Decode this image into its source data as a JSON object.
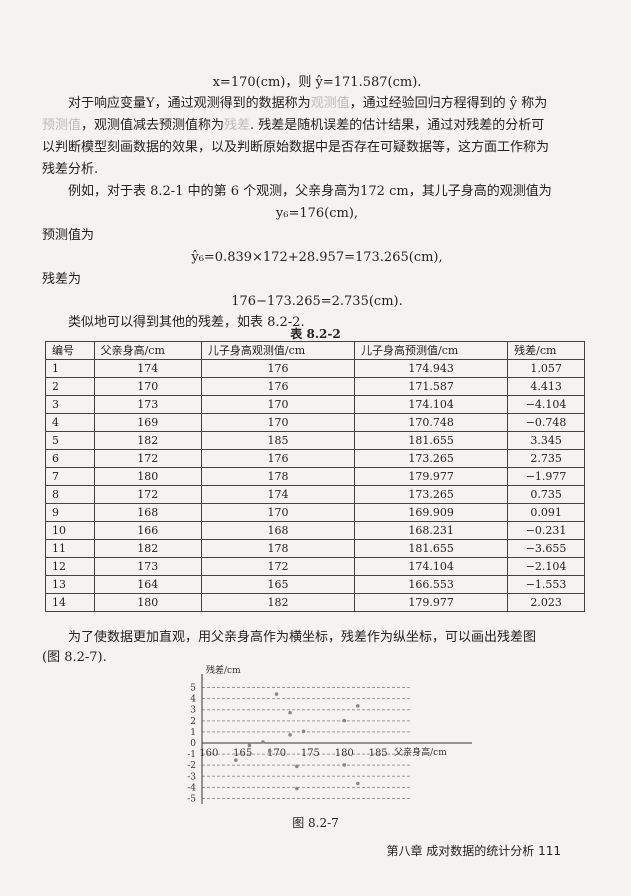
{
  "text": {
    "eq1": "x=170(cm)，则 ŷ=171.587(cm).",
    "p1a": "对于响应变量Y，通过观测得到的数据称为",
    "term_obs": "观测值",
    "p1b": "，通过经验回归方程得到的 ŷ 称为",
    "term_pred": "预测值",
    "p1c": "，观测值减去预测值称为",
    "term_res": "残差",
    "p1d": ". 残差是随机误差的估计结果，通过对残差的分析可",
    "p1e": "以判断模型刻画数据的效果，以及判断原始数据中是否存在可疑数据等，这方面工作称为",
    "p1f": "残差分析.",
    "p2": "例如，对于表 8.2-1 中的第 6 个观测，父亲身高为172 cm，其儿子身高的观测值为",
    "eq2": "y₆=176(cm),",
    "p3": "预测值为",
    "eq3": "ŷ₆=0.839×172+28.957=173.265(cm),",
    "p4": "残差为",
    "eq4": "176−173.265=2.735(cm).",
    "p5": "类似地可以得到其他的残差，如表 8.2-2.",
    "table_title": "表 8.2-2",
    "p6": "为了使数据更加直观，用父亲身高作为横坐标，残差作为纵坐标，可以画出残差图",
    "p7": "(图 8.2-7).",
    "fig_caption": "图 8.2-7",
    "footer": "第八章  成对数据的统计分析  111"
  },
  "table": {
    "headers": [
      "编号",
      "父亲身高/cm",
      "儿子身高观测值/cm",
      "儿子身高预测值/cm",
      "残差/cm"
    ],
    "rows": [
      [
        "1",
        "174",
        "176",
        "174.943",
        "1.057"
      ],
      [
        "2",
        "170",
        "176",
        "171.587",
        "4.413"
      ],
      [
        "3",
        "173",
        "170",
        "174.104",
        "−4.104"
      ],
      [
        "4",
        "169",
        "170",
        "170.748",
        "−0.748"
      ],
      [
        "5",
        "182",
        "185",
        "181.655",
        "3.345"
      ],
      [
        "6",
        "172",
        "176",
        "173.265",
        "2.735"
      ],
      [
        "7",
        "180",
        "178",
        "179.977",
        "−1.977"
      ],
      [
        "8",
        "172",
        "174",
        "173.265",
        "0.735"
      ],
      [
        "9",
        "168",
        "170",
        "169.909",
        "0.091"
      ],
      [
        "10",
        "166",
        "168",
        "168.231",
        "−0.231"
      ],
      [
        "11",
        "182",
        "178",
        "181.655",
        "−3.655"
      ],
      [
        "12",
        "173",
        "172",
        "174.104",
        "−2.104"
      ],
      [
        "13",
        "164",
        "165",
        "166.553",
        "−1.553"
      ],
      [
        "14",
        "180",
        "182",
        "179.977",
        "2.023"
      ]
    ]
  },
  "chart_data": {
    "type": "scatter",
    "xlabel": "父亲身高/cm",
    "ylabel": "残差/cm",
    "xticks": [
      160,
      165,
      170,
      175,
      180,
      185
    ],
    "yticks": [
      -5,
      -4,
      -3,
      -2,
      -1,
      0,
      1,
      2,
      3,
      4,
      5
    ],
    "xlim": [
      159,
      190
    ],
    "ylim": [
      -5.5,
      5.5
    ],
    "grid": true,
    "x": [
      174,
      170,
      173,
      169,
      182,
      172,
      180,
      172,
      168,
      166,
      182,
      173,
      164,
      180
    ],
    "y": [
      1.057,
      4.413,
      -4.104,
      -0.748,
      3.345,
      2.735,
      -1.977,
      0.735,
      0.091,
      -0.231,
      -3.655,
      -2.104,
      -1.553,
      2.023
    ]
  }
}
